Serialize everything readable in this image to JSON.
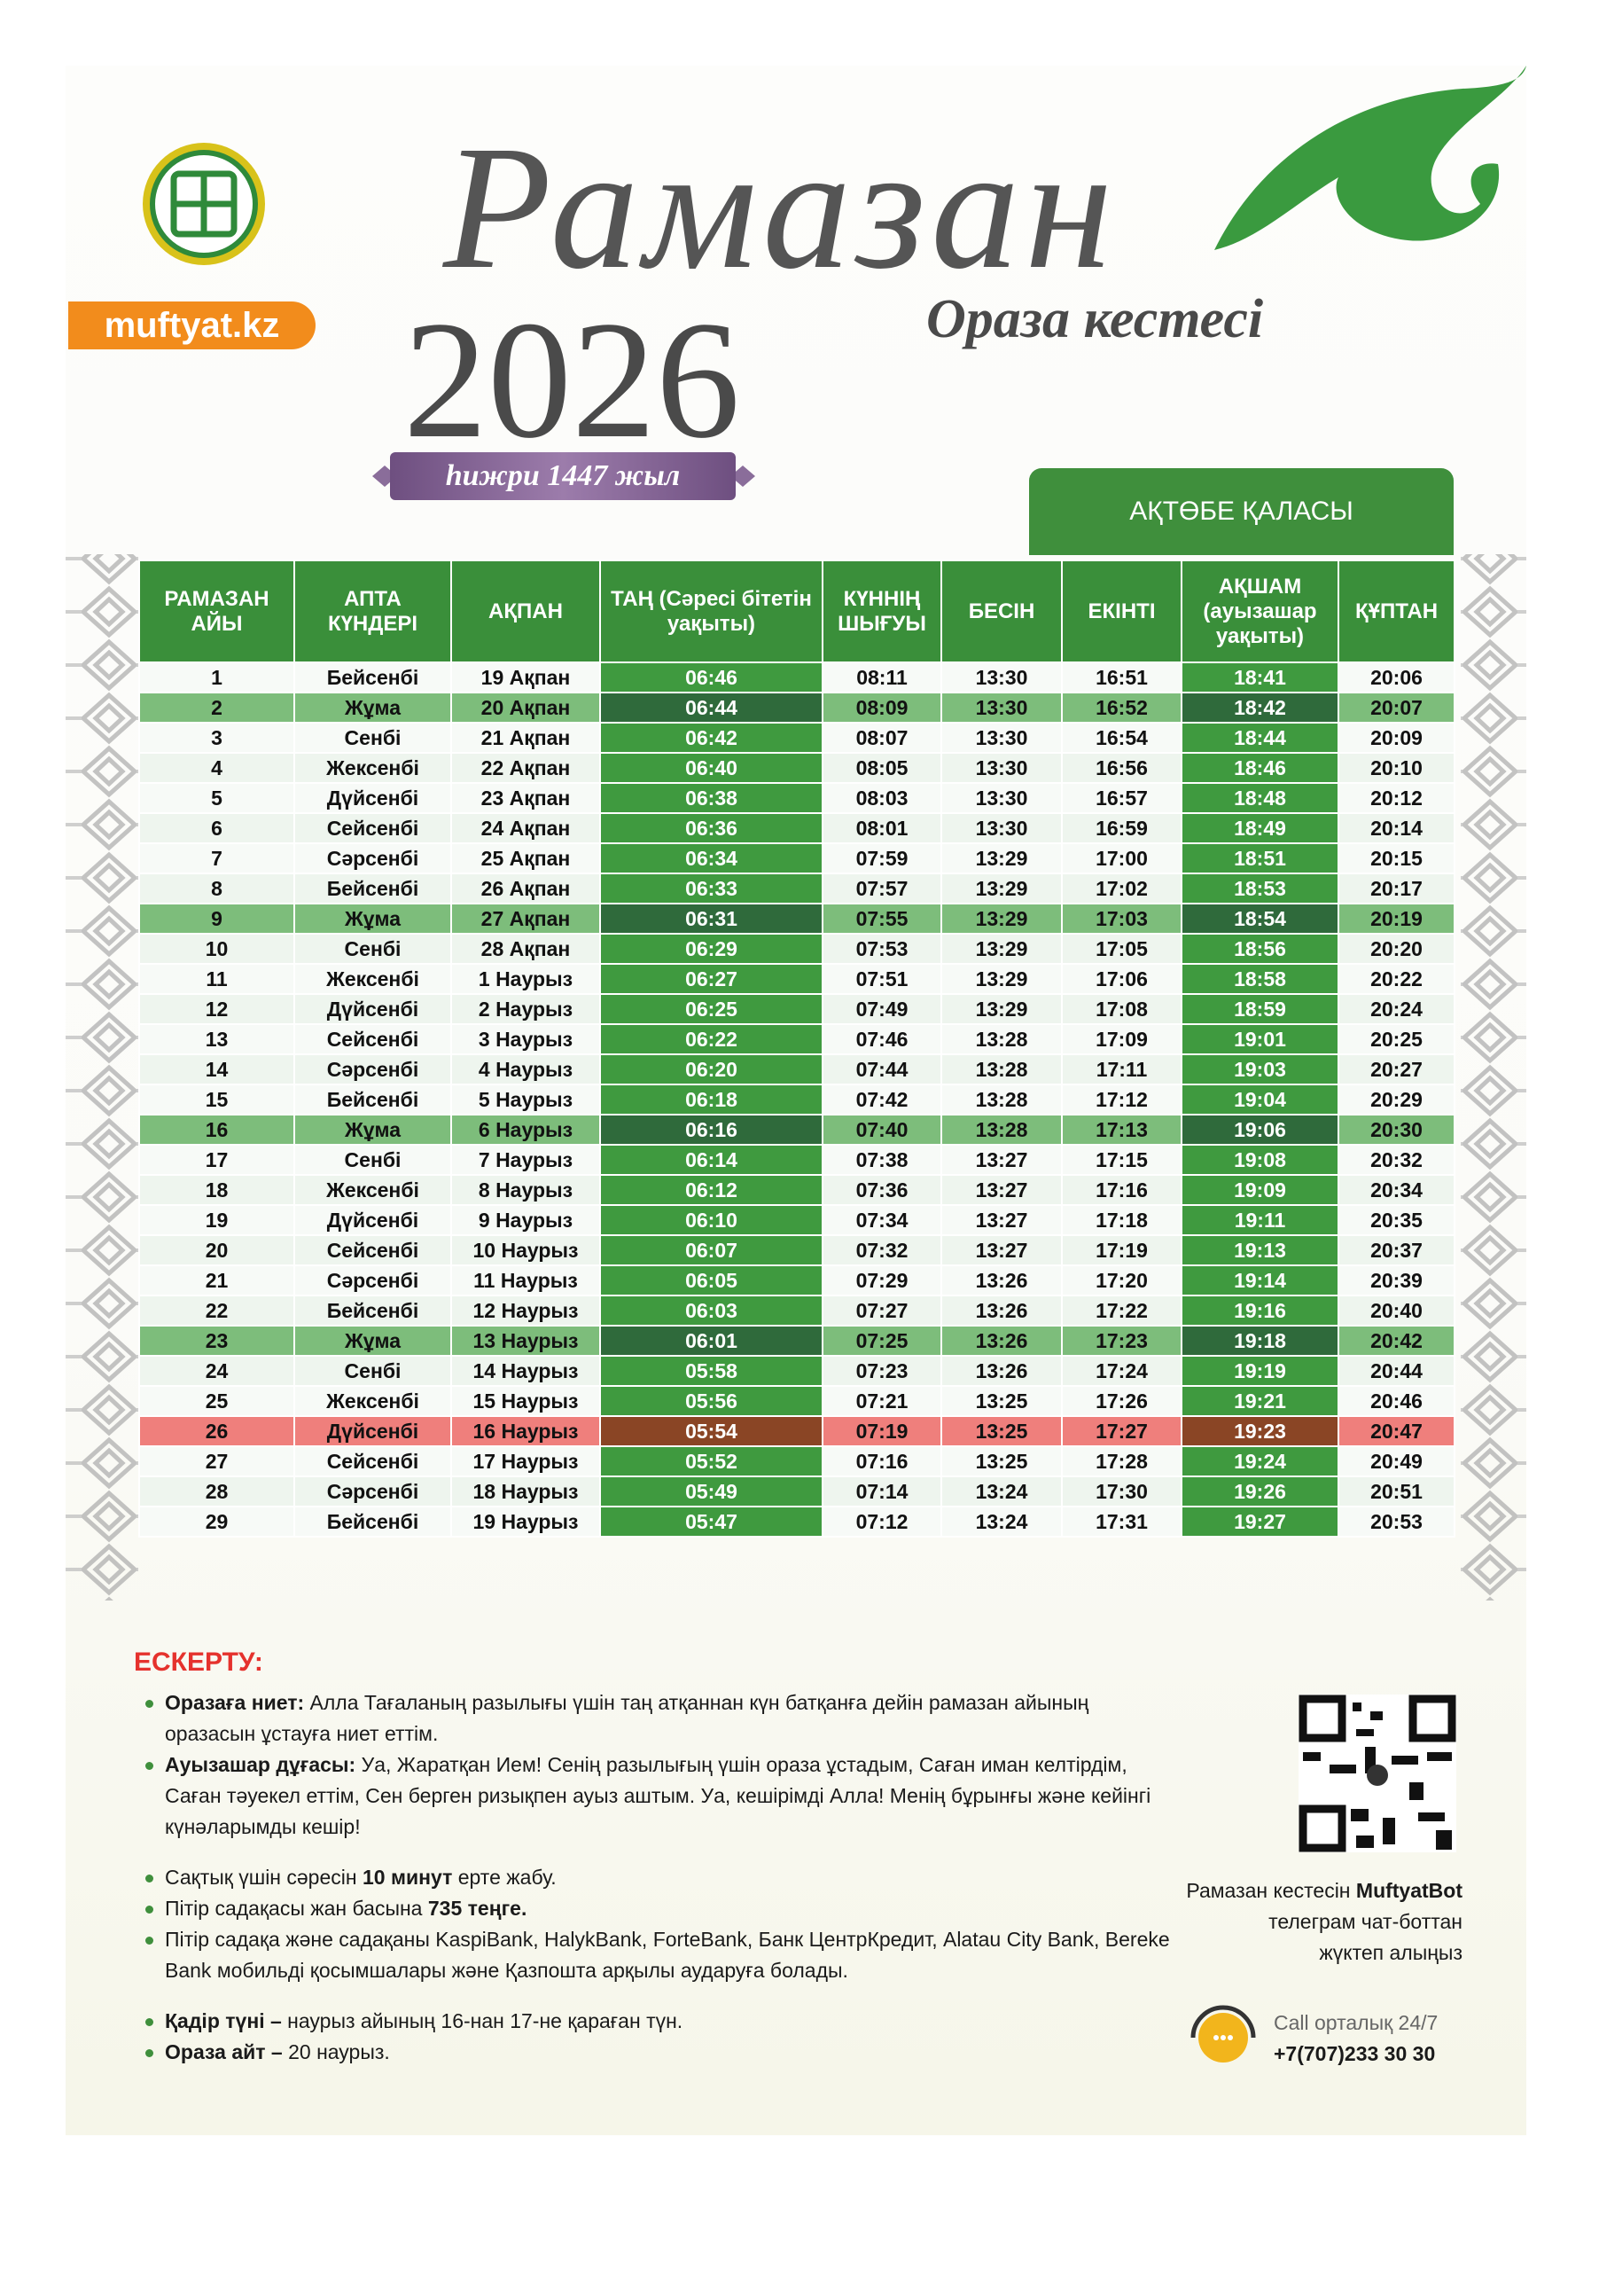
{
  "header": {
    "site": "muftyat.kz",
    "title": "Рамазан",
    "year": "2026",
    "subtitle": "Ораза кестесі",
    "hijri": "һижри 1447 жыл",
    "city": "АҚТӨБЕ ҚАЛАСЫ"
  },
  "table": {
    "headers": [
      "РАМАЗАН АЙЫ",
      "АПТА КҮНДЕРІ",
      "АҚПАН",
      "ТАҢ (Сәресі бітетін уақыты)",
      "КҮННІҢ ШЫҒУЫ",
      "БЕСІН",
      "ЕКІНТІ",
      "АҚШАМ (ауызашар уақыты)",
      "ҚҰПТАН"
    ],
    "rows": [
      [
        "1",
        "Бейсенбі",
        "19 Ақпан",
        "06:46",
        "08:11",
        "13:30",
        "16:51",
        "18:41",
        "20:06"
      ],
      [
        "2",
        "Жұма",
        "20 Ақпан",
        "06:44",
        "08:09",
        "13:30",
        "16:52",
        "18:42",
        "20:07"
      ],
      [
        "3",
        "Сенбі",
        "21 Ақпан",
        "06:42",
        "08:07",
        "13:30",
        "16:54",
        "18:44",
        "20:09"
      ],
      [
        "4",
        "Жексенбі",
        "22 Ақпан",
        "06:40",
        "08:05",
        "13:30",
        "16:56",
        "18:46",
        "20:10"
      ],
      [
        "5",
        "Дүйсенбі",
        "23 Ақпан",
        "06:38",
        "08:03",
        "13:30",
        "16:57",
        "18:48",
        "20:12"
      ],
      [
        "6",
        "Сейсенбі",
        "24 Ақпан",
        "06:36",
        "08:01",
        "13:30",
        "16:59",
        "18:49",
        "20:14"
      ],
      [
        "7",
        "Сәрсенбі",
        "25 Ақпан",
        "06:34",
        "07:59",
        "13:29",
        "17:00",
        "18:51",
        "20:15"
      ],
      [
        "8",
        "Бейсенбі",
        "26 Ақпан",
        "06:33",
        "07:57",
        "13:29",
        "17:02",
        "18:53",
        "20:17"
      ],
      [
        "9",
        "Жұма",
        "27 Ақпан",
        "06:31",
        "07:55",
        "13:29",
        "17:03",
        "18:54",
        "20:19"
      ],
      [
        "10",
        "Сенбі",
        "28 Ақпан",
        "06:29",
        "07:53",
        "13:29",
        "17:05",
        "18:56",
        "20:20"
      ],
      [
        "11",
        "Жексенбі",
        "1 Наурыз",
        "06:27",
        "07:51",
        "13:29",
        "17:06",
        "18:58",
        "20:22"
      ],
      [
        "12",
        "Дүйсенбі",
        "2 Наурыз",
        "06:25",
        "07:49",
        "13:29",
        "17:08",
        "18:59",
        "20:24"
      ],
      [
        "13",
        "Сейсенбі",
        "3 Наурыз",
        "06:22",
        "07:46",
        "13:28",
        "17:09",
        "19:01",
        "20:25"
      ],
      [
        "14",
        "Сәрсенбі",
        "4 Наурыз",
        "06:20",
        "07:44",
        "13:28",
        "17:11",
        "19:03",
        "20:27"
      ],
      [
        "15",
        "Бейсенбі",
        "5 Наурыз",
        "06:18",
        "07:42",
        "13:28",
        "17:12",
        "19:04",
        "20:29"
      ],
      [
        "16",
        "Жұма",
        "6 Наурыз",
        "06:16",
        "07:40",
        "13:28",
        "17:13",
        "19:06",
        "20:30"
      ],
      [
        "17",
        "Сенбі",
        "7 Наурыз",
        "06:14",
        "07:38",
        "13:27",
        "17:15",
        "19:08",
        "20:32"
      ],
      [
        "18",
        "Жексенбі",
        "8 Наурыз",
        "06:12",
        "07:36",
        "13:27",
        "17:16",
        "19:09",
        "20:34"
      ],
      [
        "19",
        "Дүйсенбі",
        "9 Наурыз",
        "06:10",
        "07:34",
        "13:27",
        "17:18",
        "19:11",
        "20:35"
      ],
      [
        "20",
        "Сейсенбі",
        "10 Наурыз",
        "06:07",
        "07:32",
        "13:27",
        "17:19",
        "19:13",
        "20:37"
      ],
      [
        "21",
        "Сәрсенбі",
        "11 Наурыз",
        "06:05",
        "07:29",
        "13:26",
        "17:20",
        "19:14",
        "20:39"
      ],
      [
        "22",
        "Бейсенбі",
        "12 Наурыз",
        "06:03",
        "07:27",
        "13:26",
        "17:22",
        "19:16",
        "20:40"
      ],
      [
        "23",
        "Жұма",
        "13 Наурыз",
        "06:01",
        "07:25",
        "13:26",
        "17:23",
        "19:18",
        "20:42"
      ],
      [
        "24",
        "Сенбі",
        "14 Наурыз",
        "05:58",
        "07:23",
        "13:26",
        "17:24",
        "19:19",
        "20:44"
      ],
      [
        "25",
        "Жексенбі",
        "15 Наурыз",
        "05:56",
        "07:21",
        "13:25",
        "17:26",
        "19:21",
        "20:46"
      ],
      [
        "26",
        "Дүйсенбі",
        "16 Наурыз",
        "05:54",
        "07:19",
        "13:25",
        "17:27",
        "19:23",
        "20:47"
      ],
      [
        "27",
        "Сейсенбі",
        "17 Наурыз",
        "05:52",
        "07:16",
        "13:25",
        "17:28",
        "19:24",
        "20:49"
      ],
      [
        "28",
        "Сәрсенбі",
        "18 Наурыз",
        "05:49",
        "07:14",
        "13:24",
        "17:30",
        "19:26",
        "20:51"
      ],
      [
        "29",
        "Бейсенбі",
        "19 Наурыз",
        "05:47",
        "07:12",
        "13:24",
        "17:31",
        "19:27",
        "20:53"
      ]
    ]
  },
  "notes": {
    "title": "ЕСКЕРТУ:",
    "groups": [
      [
        [
          {
            "b": "Оразаға ниет:"
          },
          {
            "t": " Алла Тағаланың разылығы үшін таң атқаннан күн батқанға дейін рамазан айының оразасын ұстауға ниет еттім."
          }
        ],
        [
          {
            "b": "Ауызашар дұғасы:"
          },
          {
            "t": " Уа, Жаратқан Ием! Сенің разылығың үшін ораза ұстадым, Саған иман келтірдім, Саған тәуекел еттім, Сен берген ризықпен ауыз аштым. Уа, кешірімді Алла! Менің бұрынғы және кейінгі күнәларымды кешір!"
          }
        ]
      ],
      [
        [
          {
            "t": "Сақтық үшін сәресін "
          },
          {
            "b": "10 минут"
          },
          {
            "t": " ерте жабу."
          }
        ],
        [
          {
            "t": "Пітір садақасы жан басына "
          },
          {
            "b": "735 теңге."
          }
        ],
        [
          {
            "t": "Пітір садақа және садақаны KaspiBank, HalykBank, ForteBank, Банк ЦентрКредит, Alatau City Bank, Bereke Bank мобильді қосымшалары және Қазпошта арқылы аударуға болады."
          }
        ]
      ],
      [
        [
          {
            "b": "Қадір түні –"
          },
          {
            "t": " наурыз айының 16-нан 17-не қараған түн."
          }
        ],
        [
          {
            "b": "Ораза айт –"
          },
          {
            "t": " 20 наурыз."
          }
        ]
      ]
    ]
  },
  "qr_caption": [
    [
      {
        "t": "Рамазан кестесін "
      },
      {
        "b": "MuftyatBot"
      }
    ],
    [
      {
        "t": "телеграм чат-боттан"
      }
    ],
    [
      {
        "t": "жүктеп алыңыз"
      }
    ]
  ],
  "call": {
    "label": "Call орталық 24/7",
    "phone": "+7(707)233 30 30"
  }
}
